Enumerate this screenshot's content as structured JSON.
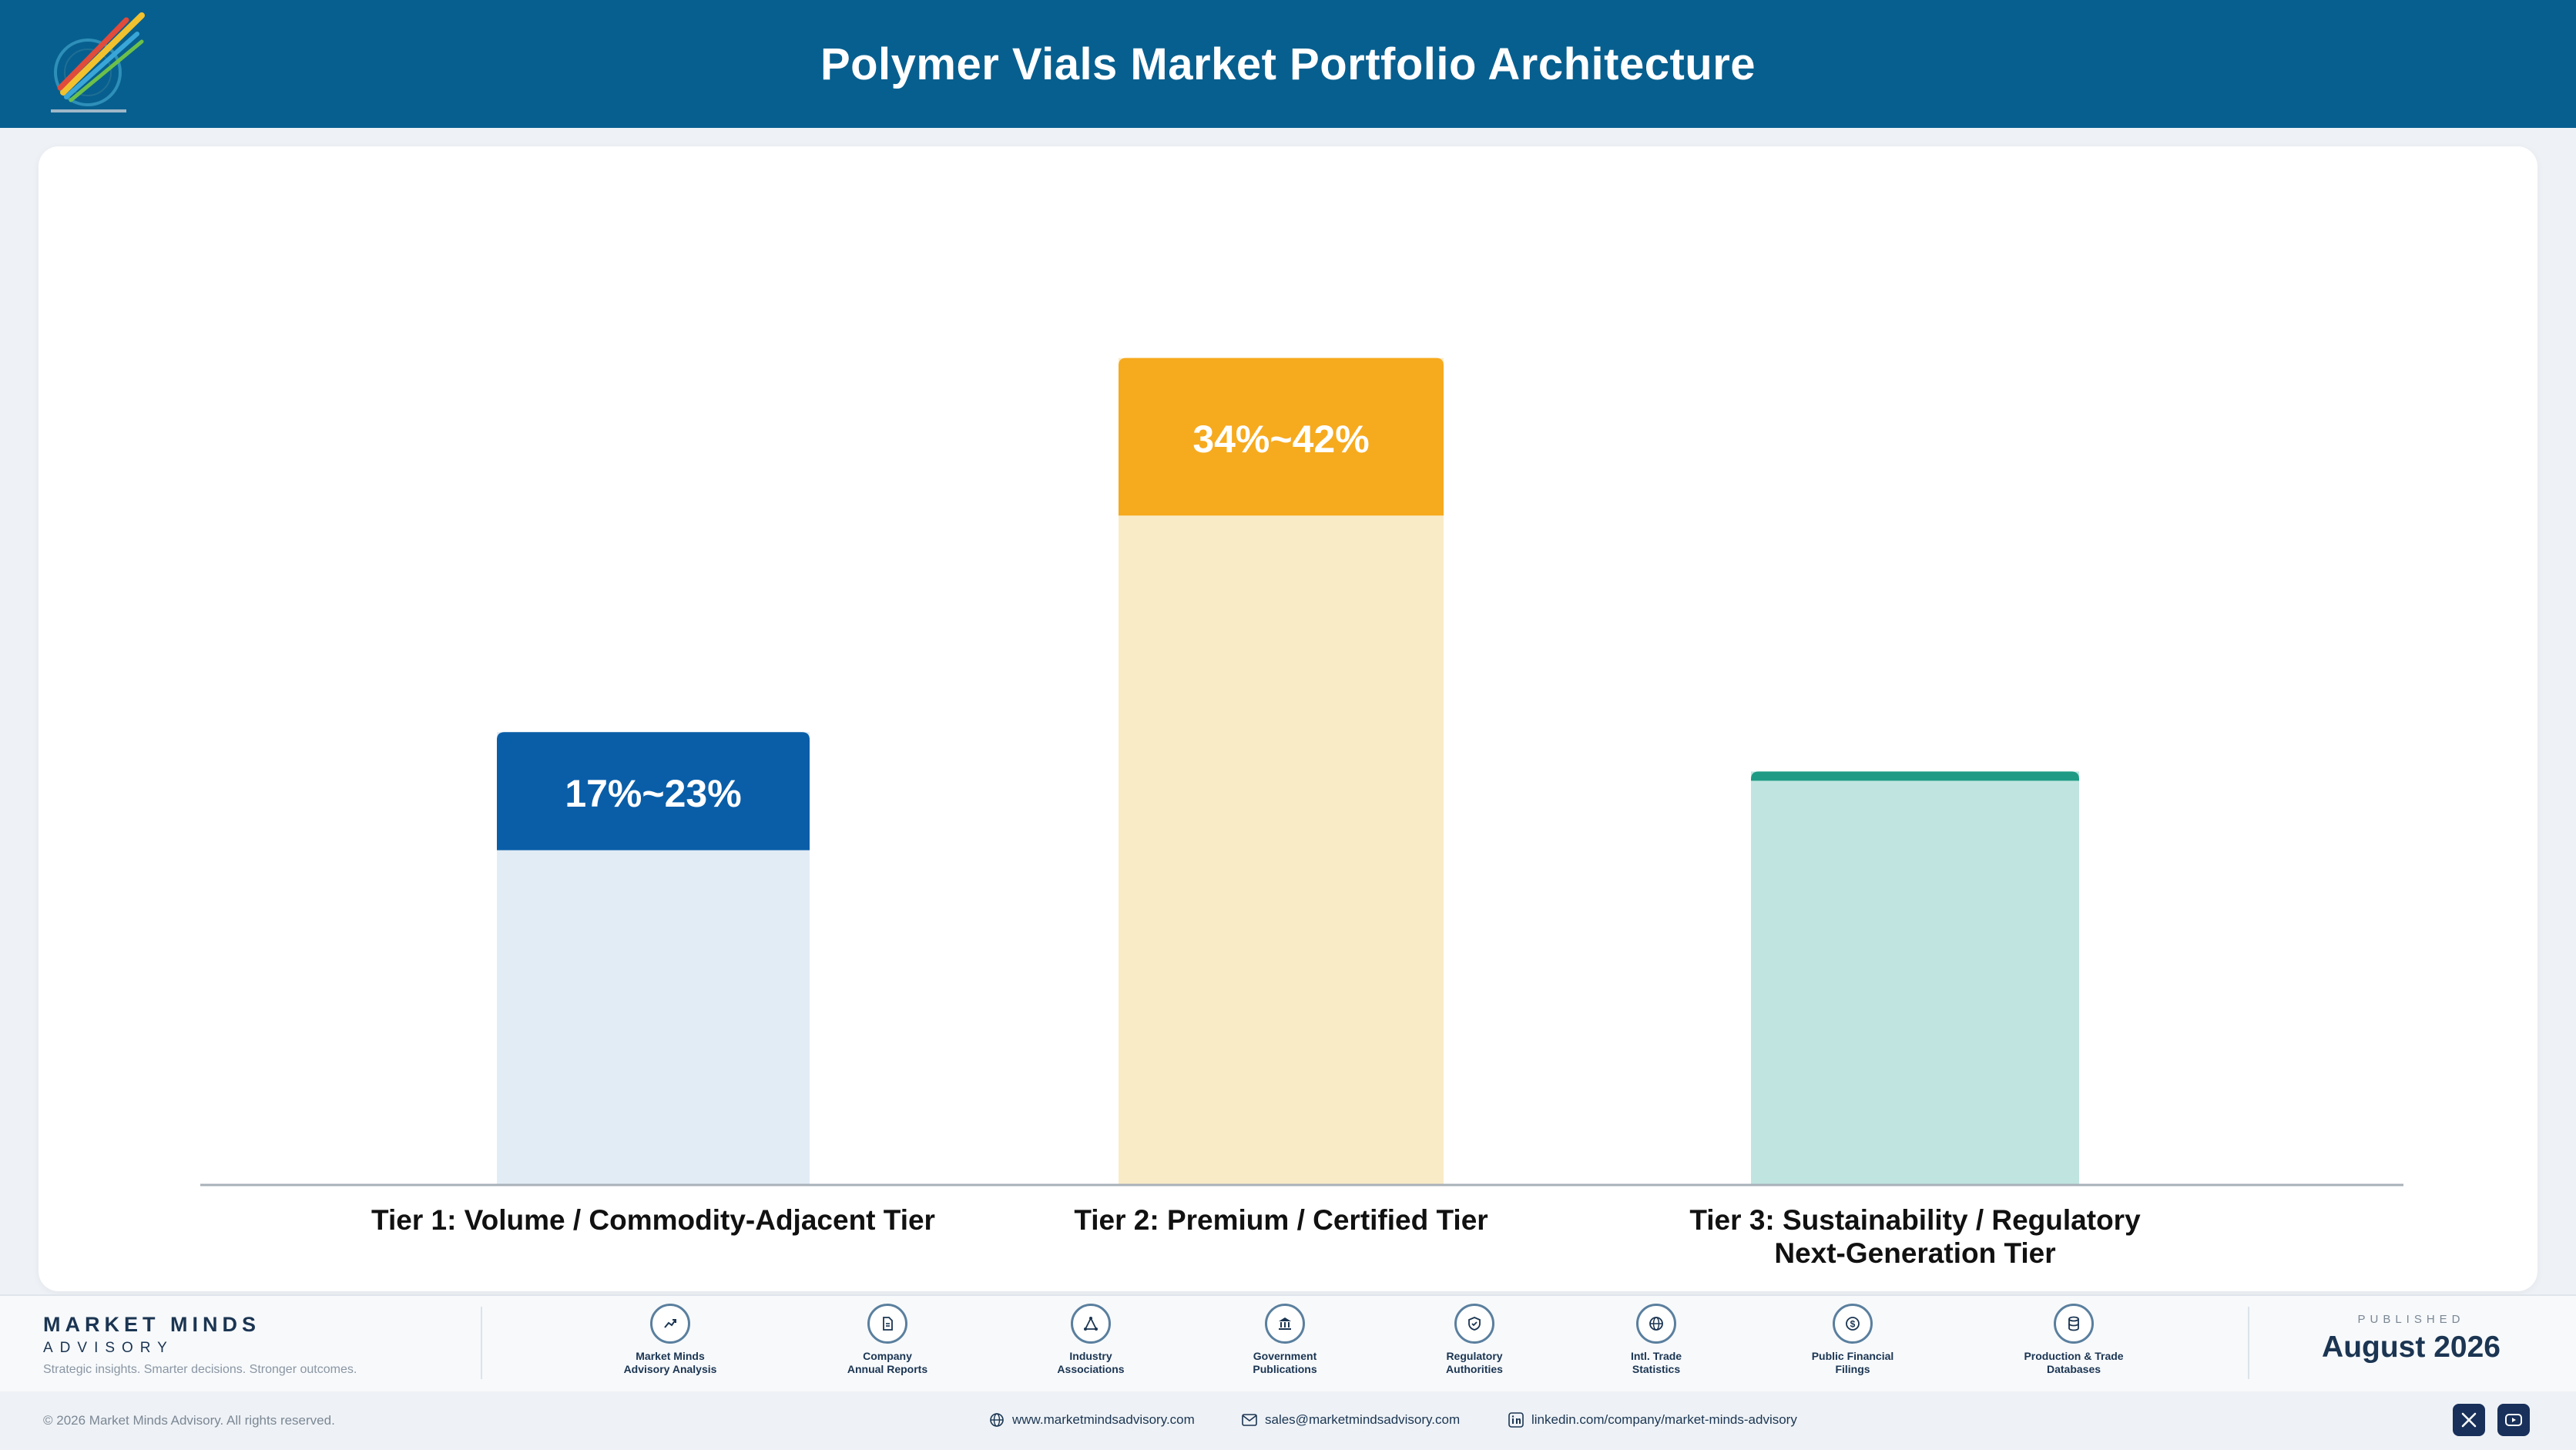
{
  "header": {
    "title": "Polymer Vials Market Portfolio Architecture"
  },
  "chart_data": {
    "type": "bar",
    "title": "",
    "xlabel": "",
    "ylabel": "",
    "categories": [
      "Tier 1: Volume / Commodity-Adjacent Tier",
      "Tier 2: Premium / Certified Tier",
      "Tier 3: Sustainability / Regulatory Next-Generation Tier"
    ],
    "ranges": [
      {
        "label": "17%~23%",
        "low": 17,
        "high": 23
      },
      {
        "label": "34%~42%",
        "low": 34,
        "high": 42
      },
      {
        "label": "",
        "low": 0,
        "high": 0
      }
    ],
    "bar_totals": [
      23,
      42,
      21
    ],
    "ylim": [
      0,
      45
    ],
    "colors": {
      "fill": [
        "#0a5ea8",
        "#f6aa1e",
        "#1f9b85"
      ],
      "base": [
        "#e2ecf5",
        "#f9ebc6",
        "#c0e5e1"
      ]
    },
    "grid": false
  },
  "footer": {
    "brand": {
      "name": "MARKET MINDS",
      "sub": "ADVISORY",
      "tagline": "Strategic insights. Smarter decisions. Stronger outcomes."
    },
    "sources": [
      {
        "label": "Market Minds\nAdvisory Analysis",
        "icon": "trend-chart-icon"
      },
      {
        "label": "Company\nAnnual Reports",
        "icon": "document-icon"
      },
      {
        "label": "Industry\nAssociations",
        "icon": "network-icon"
      },
      {
        "label": "Government\nPublications",
        "icon": "government-building-icon"
      },
      {
        "label": "Regulatory\nAuthorities",
        "icon": "shield-check-icon"
      },
      {
        "label": "Intl. Trade\nStatistics",
        "icon": "globe-icon"
      },
      {
        "label": "Public Financial\nFilings",
        "icon": "dollar-coin-icon"
      },
      {
        "label": "Production & Trade\nDatabases",
        "icon": "database-icon"
      }
    ],
    "published_label": "PUBLISHED",
    "published_date": "August 2026",
    "copyright": "© 2026 Market Minds Advisory. All rights reserved.",
    "website": "www.marketmindsadvisory.com",
    "email": "sales@marketmindsadvisory.com",
    "linkedin": "linkedin.com/company/market-minds-advisory",
    "social": [
      "x-icon",
      "youtube-icon"
    ]
  }
}
